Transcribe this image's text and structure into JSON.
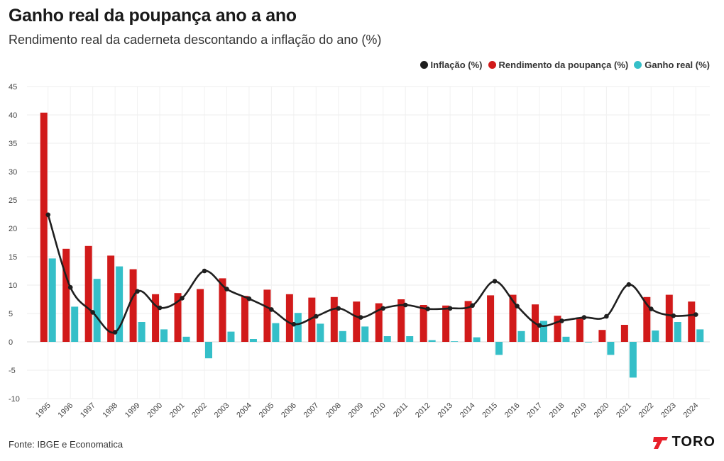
{
  "header": {
    "title": "Ganho real da poupança ano a ano",
    "subtitle": "Rendimento real da caderneta descontando a inflação do ano (%)"
  },
  "footer": {
    "source": "Fonte: IBGE e Economatica",
    "logo": "TORO"
  },
  "colors": {
    "inflacao": "#1f1f1f",
    "rendimento": "#d11a1a",
    "ganho": "#35bfc8",
    "logo_accent": "#e8202a"
  },
  "chart_data": {
    "type": "bar",
    "categories": [
      "1995",
      "1996",
      "1997",
      "1998",
      "1999",
      "2000",
      "2001",
      "2002",
      "2003",
      "2004",
      "2005",
      "2006",
      "2007",
      "2008",
      "2009",
      "2010",
      "2011",
      "2012",
      "2013",
      "2014",
      "2015",
      "2016",
      "2017",
      "2018",
      "2019",
      "2020",
      "2021",
      "2022",
      "2023",
      "2024"
    ],
    "series": [
      {
        "name": "Inflação (%)",
        "type": "line",
        "values": [
          22.4,
          9.6,
          5.2,
          1.7,
          8.9,
          6.0,
          7.7,
          12.5,
          9.3,
          7.6,
          5.7,
          3.1,
          4.5,
          5.9,
          4.3,
          5.9,
          6.5,
          5.8,
          5.9,
          6.4,
          10.7,
          6.3,
          2.9,
          3.7,
          4.3,
          4.5,
          10.1,
          5.8,
          4.6,
          4.8
        ]
      },
      {
        "name": "Rendimento da poupança (%)",
        "type": "bar",
        "values": [
          40.4,
          16.4,
          16.9,
          15.2,
          12.8,
          8.4,
          8.6,
          9.3,
          11.2,
          8.1,
          9.2,
          8.4,
          7.8,
          7.9,
          7.1,
          6.8,
          7.5,
          6.5,
          6.4,
          7.2,
          8.2,
          8.3,
          6.6,
          4.6,
          4.3,
          2.1,
          3.0,
          7.9,
          8.3,
          7.1
        ]
      },
      {
        "name": "Ganho real (%)",
        "type": "bar",
        "values": [
          14.7,
          6.2,
          11.1,
          13.3,
          3.5,
          2.2,
          0.9,
          -2.9,
          1.8,
          0.5,
          3.3,
          5.1,
          3.2,
          1.9,
          2.7,
          1.0,
          1.0,
          0.3,
          0.1,
          0.8,
          -2.3,
          1.9,
          3.7,
          0.9,
          0.0,
          -2.3,
          -6.3,
          2.0,
          3.5,
          2.2
        ]
      }
    ],
    "yticks": [
      "45",
      "40",
      "35",
      "30",
      "25",
      "20",
      "15",
      "10",
      "5",
      "0",
      "-5",
      "-10"
    ],
    "ylim": [
      -10,
      45
    ],
    "legend_position": "top-right",
    "grid": true
  }
}
